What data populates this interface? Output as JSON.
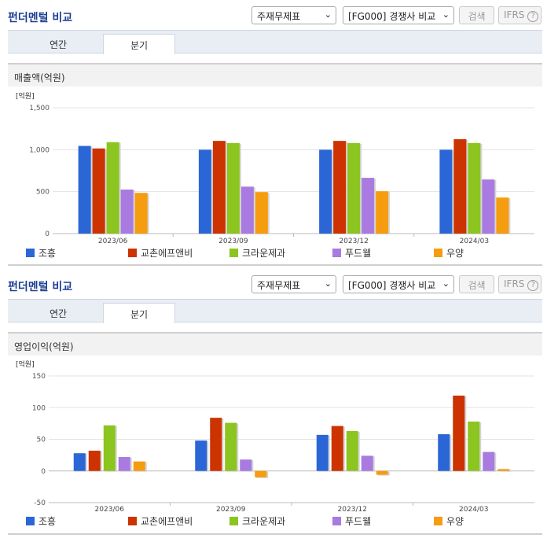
{
  "panels": [
    {
      "title": "펀더멘털 비교",
      "select1": "주재무제표",
      "select2": "[FG000] 경쟁사 비교",
      "search_label": "검색",
      "ifrs_label": "IFRS",
      "help_icon": "?",
      "tabs": [
        {
          "label": "연간",
          "active": false
        },
        {
          "label": "분기",
          "active": true
        }
      ],
      "chart_title": "매출액(억원)",
      "unit": "[억원]",
      "colors": [
        "#2b66d6",
        "#cc3300",
        "#8cc420",
        "#a97be0",
        "#f59c0f"
      ],
      "legend": [
        "조흥",
        "교촌에프앤비",
        "크라운제과",
        "푸드웰",
        "우양"
      ]
    },
    {
      "title": "펀더멘털 비교",
      "select1": "주재무제표",
      "select2": "[FG000] 경쟁사 비교",
      "search_label": "검색",
      "ifrs_label": "IFRS",
      "help_icon": "?",
      "tabs": [
        {
          "label": "연간",
          "active": false
        },
        {
          "label": "분기",
          "active": true
        }
      ],
      "chart_title": "영업이익(억원)",
      "unit": "[억원]",
      "colors": [
        "#2b66d6",
        "#cc3300",
        "#8cc420",
        "#a97be0",
        "#f59c0f"
      ],
      "legend": [
        "조흥",
        "교촌에프앤비",
        "크라운제과",
        "푸드웰",
        "우양"
      ]
    }
  ],
  "chart_data": [
    {
      "type": "bar",
      "categories": [
        "2023/06",
        "2023/09",
        "2023/12",
        "2024/03"
      ],
      "yticks": [
        "1,500",
        "1,000",
        "500",
        "0"
      ],
      "ylim": [
        0,
        1500
      ],
      "series": [
        {
          "name": "조흥",
          "values": [
            1045,
            1000,
            1000,
            1000
          ]
        },
        {
          "name": "교촌에프앤비",
          "values": [
            1015,
            1105,
            1105,
            1125
          ]
        },
        {
          "name": "크라운제과",
          "values": [
            1090,
            1080,
            1080,
            1080
          ]
        },
        {
          "name": "푸드웰",
          "values": [
            525,
            560,
            665,
            645
          ]
        },
        {
          "name": "우양",
          "values": [
            485,
            495,
            505,
            430
          ]
        }
      ]
    },
    {
      "type": "bar",
      "categories": [
        "2023/06",
        "2023/09",
        "2023/12",
        "2024/03"
      ],
      "yticks": [
        "150",
        "100",
        "50",
        "0",
        "-50"
      ],
      "ylim": [
        -50,
        150
      ],
      "series": [
        {
          "name": "조흥",
          "values": [
            28,
            48,
            57,
            58
          ]
        },
        {
          "name": "교촌에프앤비",
          "values": [
            32,
            84,
            71,
            119
          ]
        },
        {
          "name": "크라운제과",
          "values": [
            72,
            76,
            63,
            78
          ]
        },
        {
          "name": "푸드웰",
          "values": [
            22,
            18,
            24,
            30
          ]
        },
        {
          "name": "우양",
          "values": [
            15,
            -10,
            -6,
            3
          ]
        }
      ]
    }
  ]
}
